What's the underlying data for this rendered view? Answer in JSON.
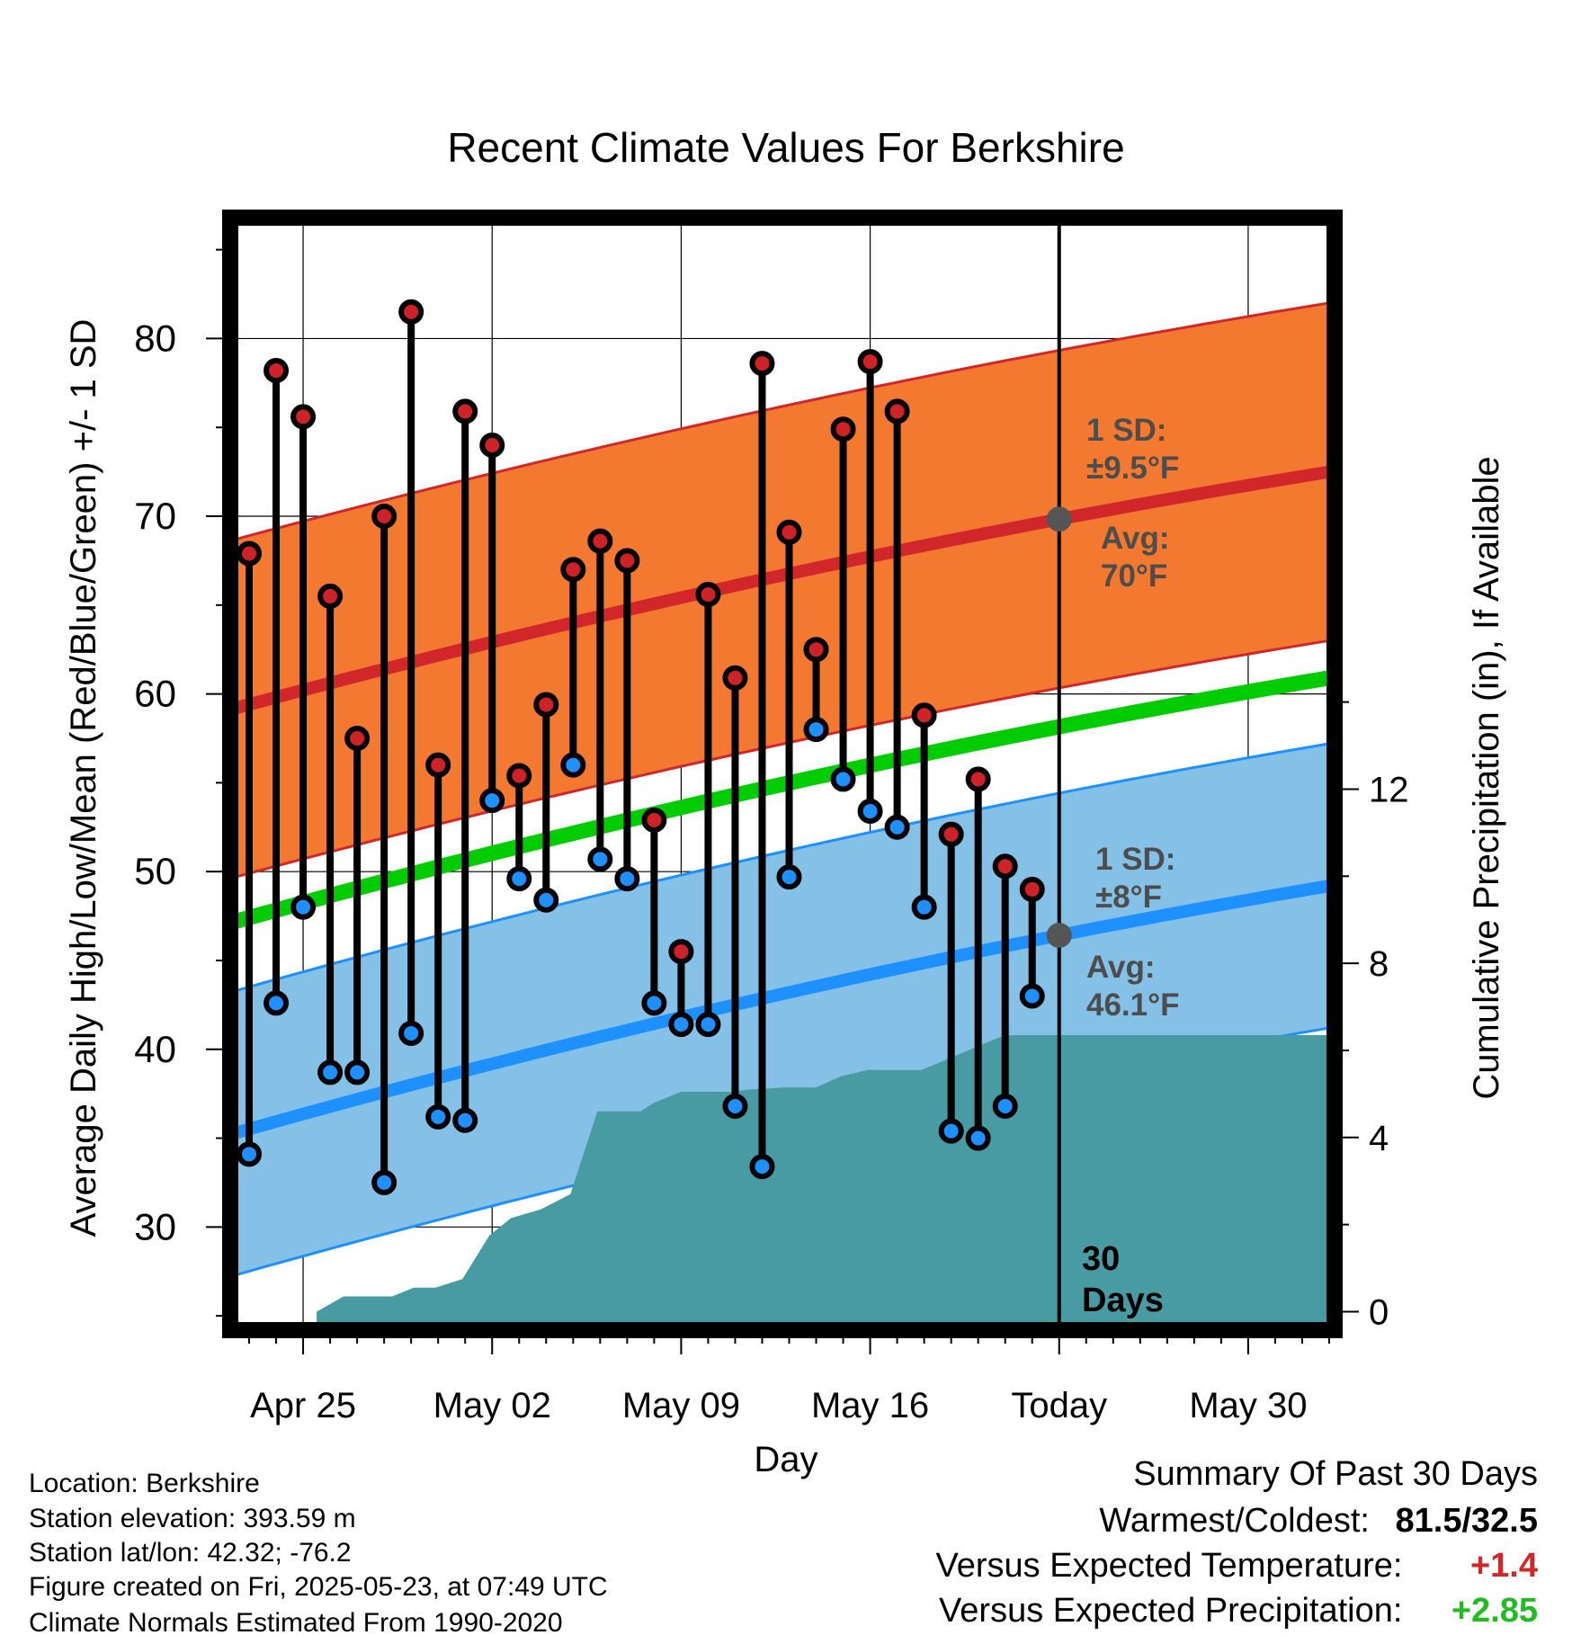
{
  "chart_data": {
    "type": "line",
    "title": "Recent Climate Values For Berkshire",
    "xlabel": "Day",
    "ylabel": "Average Daily High/Low/Mean (Red/Blue/Green) +/- 1 SD",
    "ylabel_right": "Cumulative Precipitation (in), If Available",
    "x_tick_labels": [
      "Apr 25",
      "May 02",
      "May 09",
      "May 16",
      "Today",
      "May 30"
    ],
    "x_tick_days": [
      2,
      9,
      16,
      23,
      30,
      37
    ],
    "x_range_days": [
      -0.5,
      40
    ],
    "y_ticks": [
      30,
      40,
      50,
      60,
      70,
      80
    ],
    "ylim": [
      24.5,
      86.5
    ],
    "y2_ticks": [
      0,
      4,
      8,
      12
    ],
    "y2lim": [
      -0.3,
      25
    ],
    "grid": true,
    "today_day": 30,
    "today_label": "30 Days",
    "daily_high_low": {
      "days": [
        -1,
        0,
        1,
        2,
        3,
        4,
        5,
        6,
        7,
        8,
        9,
        10,
        11,
        12,
        13,
        14,
        15,
        16,
        17,
        18,
        19,
        20,
        21,
        22,
        23,
        24,
        25,
        26,
        27,
        28,
        29
      ],
      "high": [
        null,
        67.9,
        78.2,
        75.6,
        65.5,
        57.5,
        70.0,
        81.5,
        56.0,
        75.9,
        74.0,
        55.4,
        59.4,
        67.0,
        68.6,
        67.5,
        52.9,
        45.5,
        65.6,
        60.9,
        78.6,
        69.1,
        62.5,
        74.9,
        78.7,
        75.9,
        58.8,
        52.1,
        55.2,
        50.3,
        49.0
      ],
      "low": [
        null,
        34.1,
        42.6,
        48.0,
        38.7,
        38.7,
        32.5,
        40.9,
        36.2,
        36.0,
        54.0,
        49.6,
        48.4,
        56.0,
        50.7,
        49.6,
        42.6,
        41.4,
        41.4,
        36.8,
        33.4,
        49.7,
        58.0,
        55.2,
        53.4,
        52.5,
        48.0,
        35.4,
        35.0,
        36.8,
        43.0
      ]
    },
    "normal_high": {
      "start": 59.2,
      "end": 72.5,
      "sd": 9.5
    },
    "normal_low": {
      "start": 35.3,
      "end": 49.2,
      "sd": 8.0
    },
    "normal_mean": {
      "start": 47.2,
      "end": 60.9
    },
    "cumulative_precip": {
      "days": [
        2.5,
        3.5,
        5.3,
        6.1,
        6.9,
        7.9,
        8.9,
        9.7,
        10.8,
        11.9,
        12.9,
        13.9,
        14.5,
        15.0,
        16.0,
        16.9,
        17.9,
        18.5,
        19.9,
        21.0,
        21.9,
        22.9,
        23.9,
        24.9,
        27.4,
        28.0,
        28.4,
        40.0
      ],
      "values": [
        0,
        0.35,
        0.35,
        0.55,
        0.55,
        0.75,
        1.75,
        2.15,
        2.35,
        2.7,
        4.6,
        4.6,
        4.6,
        4.8,
        5.05,
        5.05,
        5.05,
        5.1,
        5.15,
        5.15,
        5.4,
        5.55,
        5.55,
        5.55,
        6.2,
        6.35,
        6.35,
        6.35
      ]
    },
    "annotations": {
      "high_sd": [
        "1 SD:",
        "±9.5°F"
      ],
      "high_avg": [
        "Avg:",
        "70°F"
      ],
      "low_sd": [
        "1 SD:",
        "±8°F"
      ],
      "low_avg": [
        "Avg:",
        "46.1°F"
      ]
    },
    "colors": {
      "high_band": "#f47930",
      "high_line": "#d1272b",
      "low_band": "#85c1e6",
      "low_line": "#1e90ff",
      "mean_line": "#00cc00",
      "precip": "#489aa3",
      "high_dot": "#cc2228",
      "low_dot": "#1e90ff",
      "annotation": "#4d4d4d"
    }
  },
  "footer": {
    "location": "Location: Berkshire",
    "elevation": "Station elevation: 393.59 m",
    "latlon": "Station lat/lon: 42.32; -76.2",
    "created": "Figure created on Fri, 2025-05-23, at 07:49 UTC",
    "normals": "Climate Normals Estimated From 1990-2020"
  },
  "summary": {
    "title": "Summary Of Past 30 Days",
    "warmest_label": "Warmest/Coldest:",
    "warmest_value": "81.5/32.5",
    "temp_label": "Versus Expected Temperature:",
    "temp_value": "+1.4",
    "temp_color": "#d1272b",
    "precip_label": "Versus Expected Precipitation:",
    "precip_value": "+2.85",
    "precip_color": "#22bb22"
  }
}
